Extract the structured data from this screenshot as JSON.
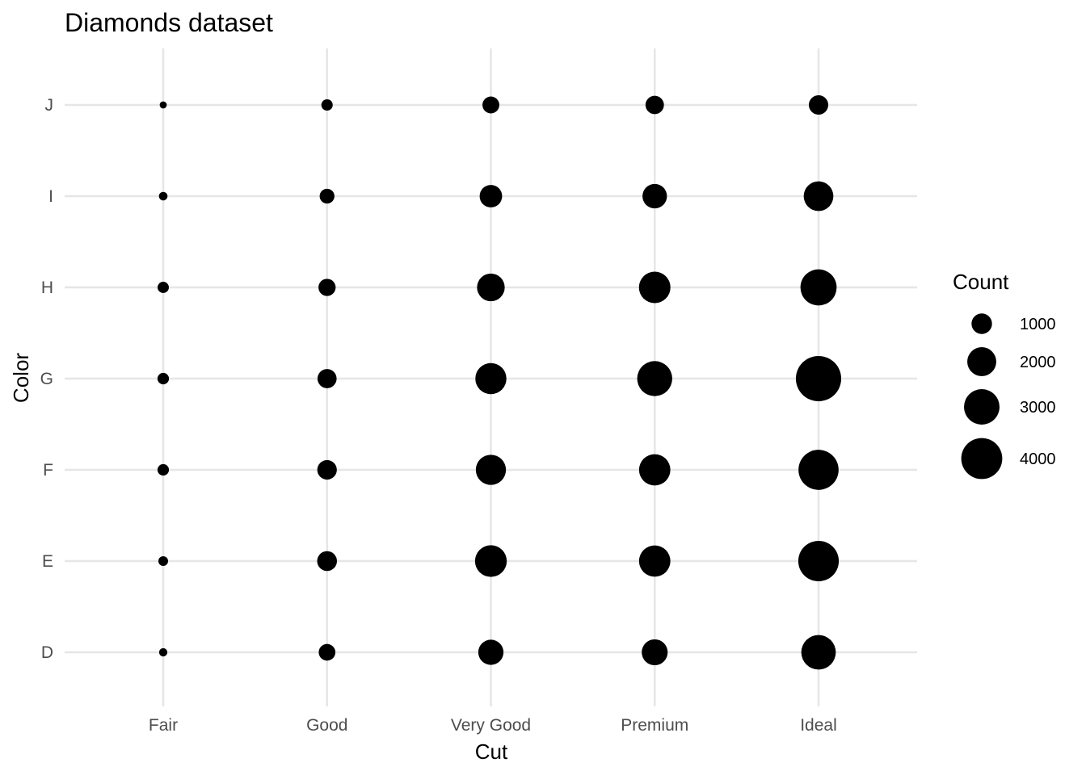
{
  "chart_data": {
    "type": "scatter",
    "title": "Diamonds dataset",
    "xlabel": "Cut",
    "ylabel": "Color",
    "x_categories": [
      "Fair",
      "Good",
      "Very Good",
      "Premium",
      "Ideal"
    ],
    "y_categories": [
      "D",
      "E",
      "F",
      "G",
      "H",
      "I",
      "J"
    ],
    "size_legend": {
      "title": "Count",
      "breaks": [
        1000,
        2000,
        3000,
        4000
      ],
      "labels": [
        "1000",
        "2000",
        "3000",
        "4000"
      ]
    },
    "grid": true,
    "legend_position": "right",
    "points": [
      {
        "cut": "Fair",
        "color": "D",
        "count": 163
      },
      {
        "cut": "Fair",
        "color": "E",
        "count": 224
      },
      {
        "cut": "Fair",
        "color": "F",
        "count": 312
      },
      {
        "cut": "Fair",
        "color": "G",
        "count": 314
      },
      {
        "cut": "Fair",
        "color": "H",
        "count": 303
      },
      {
        "cut": "Fair",
        "color": "I",
        "count": 175
      },
      {
        "cut": "Fair",
        "color": "J",
        "count": 119
      },
      {
        "cut": "Good",
        "color": "D",
        "count": 662
      },
      {
        "cut": "Good",
        "color": "E",
        "count": 933
      },
      {
        "cut": "Good",
        "color": "F",
        "count": 909
      },
      {
        "cut": "Good",
        "color": "G",
        "count": 871
      },
      {
        "cut": "Good",
        "color": "H",
        "count": 702
      },
      {
        "cut": "Good",
        "color": "I",
        "count": 522
      },
      {
        "cut": "Good",
        "color": "J",
        "count": 307
      },
      {
        "cut": "Very Good",
        "color": "D",
        "count": 1513
      },
      {
        "cut": "Very Good",
        "color": "E",
        "count": 2400
      },
      {
        "cut": "Very Good",
        "color": "F",
        "count": 2164
      },
      {
        "cut": "Very Good",
        "color": "G",
        "count": 2299
      },
      {
        "cut": "Very Good",
        "color": "H",
        "count": 1824
      },
      {
        "cut": "Very Good",
        "color": "I",
        "count": 1204
      },
      {
        "cut": "Very Good",
        "color": "J",
        "count": 678
      },
      {
        "cut": "Premium",
        "color": "D",
        "count": 1603
      },
      {
        "cut": "Premium",
        "color": "E",
        "count": 2337
      },
      {
        "cut": "Premium",
        "color": "F",
        "count": 2331
      },
      {
        "cut": "Premium",
        "color": "G",
        "count": 2924
      },
      {
        "cut": "Premium",
        "color": "H",
        "count": 2360
      },
      {
        "cut": "Premium",
        "color": "I",
        "count": 1428
      },
      {
        "cut": "Premium",
        "color": "J",
        "count": 808
      },
      {
        "cut": "Ideal",
        "color": "D",
        "count": 2834
      },
      {
        "cut": "Ideal",
        "color": "E",
        "count": 3903
      },
      {
        "cut": "Ideal",
        "color": "F",
        "count": 3826
      },
      {
        "cut": "Ideal",
        "color": "G",
        "count": 4884
      },
      {
        "cut": "Ideal",
        "color": "H",
        "count": 3115
      },
      {
        "cut": "Ideal",
        "color": "I",
        "count": 2093
      },
      {
        "cut": "Ideal",
        "color": "J",
        "count": 896
      }
    ]
  }
}
